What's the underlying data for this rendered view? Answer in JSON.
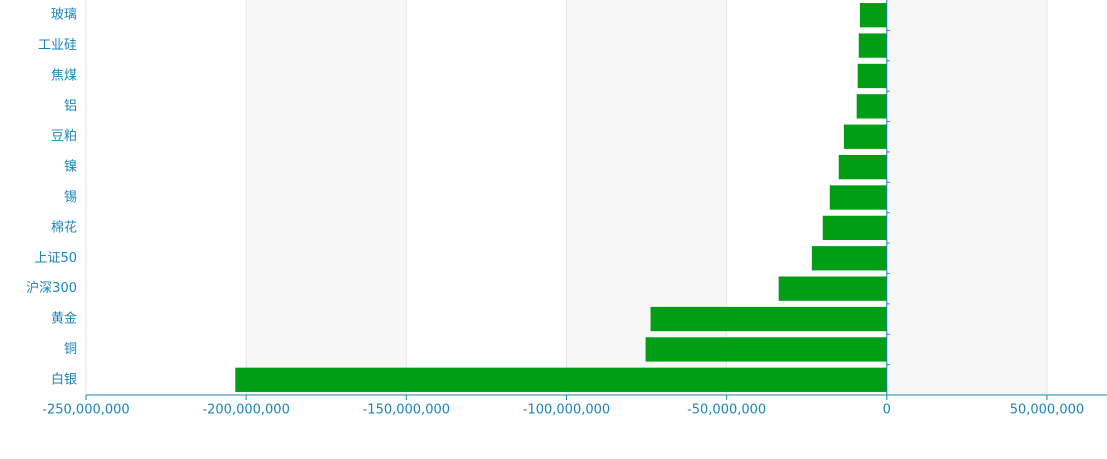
{
  "chart_data": {
    "type": "hbar",
    "categories": [
      "玻璃",
      "工业硅",
      "焦煤",
      "铝",
      "豆粕",
      "镍",
      "锡",
      "棉花",
      "上证50",
      "沪深300",
      "黄金",
      "铜",
      "白银"
    ],
    "values": [
      -8400000,
      -8750000,
      -9100000,
      -9400000,
      -13400000,
      -15000000,
      -17800000,
      -20000000,
      -23400000,
      -33750000,
      -73750000,
      -75300000,
      -203400000
    ],
    "color": "#009e15",
    "xlim": [
      -250000000,
      68750000
    ],
    "xticks": [
      {
        "value": -250000000,
        "label": "-250,000,000"
      },
      {
        "value": -200000000,
        "label": "-200,000,000"
      },
      {
        "value": -150000000,
        "label": "-150,000,000"
      },
      {
        "value": -100000000,
        "label": "-100,000,000"
      },
      {
        "value": -50000000,
        "label": "-50,000,000"
      },
      0,
      {
        "value": 50000000,
        "label": "50,000,000"
      }
    ],
    "grid": true
  }
}
